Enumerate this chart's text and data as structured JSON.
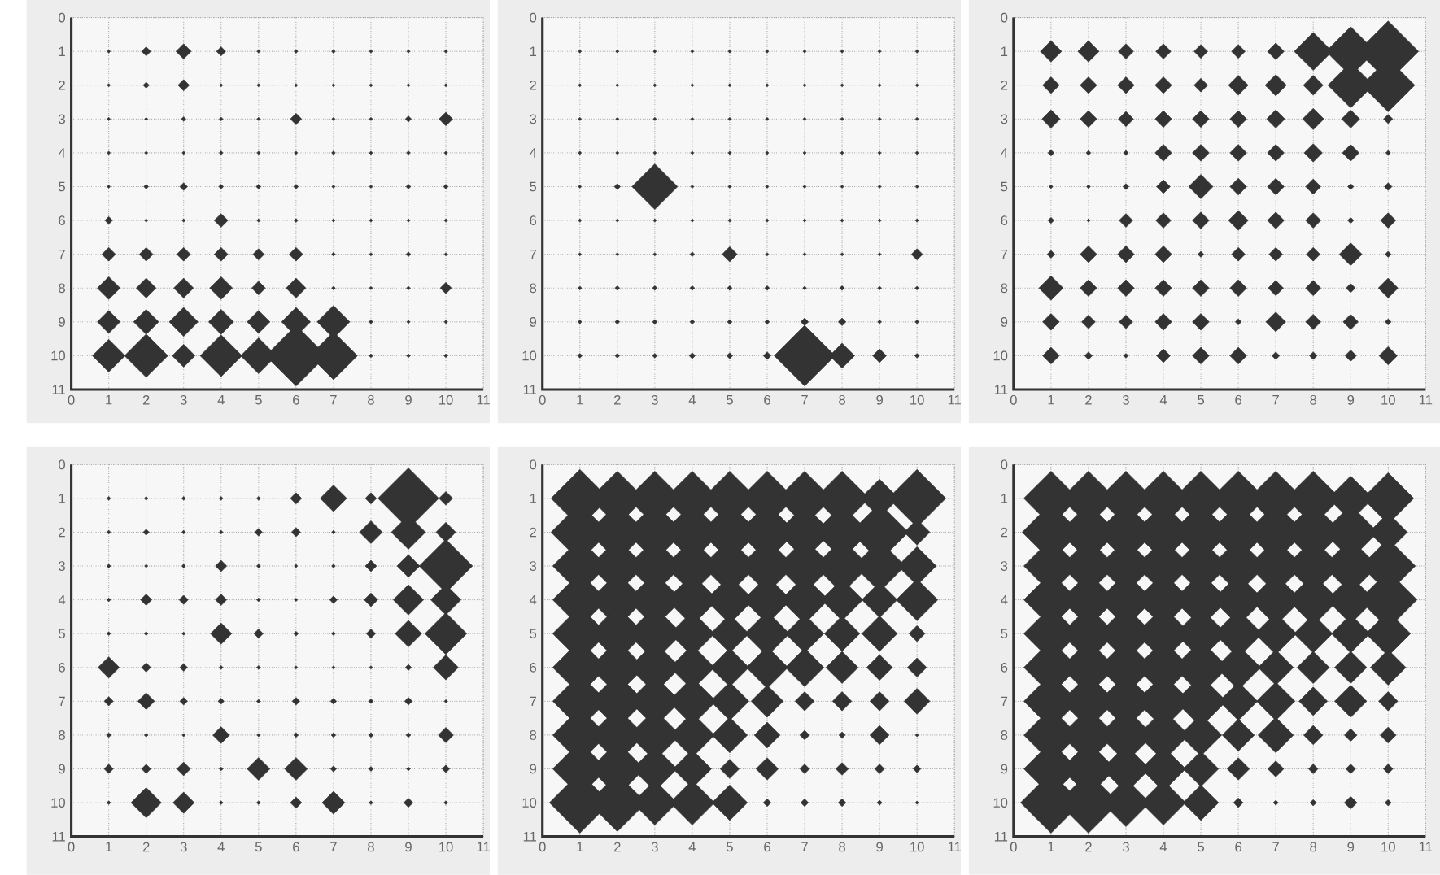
{
  "chart_data": [
    {
      "type": "bubble",
      "color": "#333333",
      "marker": "diamond",
      "grid": true,
      "xlim": [
        0,
        11
      ],
      "ylim": [
        11,
        0
      ],
      "xticks": [
        0,
        1,
        2,
        3,
        4,
        5,
        6,
        7,
        8,
        9,
        10,
        11
      ],
      "yticks": [
        0,
        1,
        2,
        3,
        4,
        5,
        6,
        7,
        8,
        9,
        10,
        11
      ],
      "x": [
        1,
        2,
        3,
        4,
        5,
        6,
        7,
        8,
        9,
        10,
        1,
        2,
        3,
        4,
        5,
        6,
        7,
        8,
        9,
        10,
        1,
        2,
        3,
        4,
        5,
        6,
        7,
        8,
        9,
        10,
        1,
        2,
        3,
        4,
        5,
        6,
        7,
        8,
        9,
        10,
        1,
        2,
        3,
        4,
        5,
        6,
        7,
        8,
        9,
        10,
        1,
        2,
        3,
        4,
        5,
        6,
        7,
        8,
        9,
        10,
        1,
        2,
        3,
        4,
        5,
        6,
        7,
        8,
        9,
        10,
        1,
        2,
        3,
        4,
        5,
        6,
        7,
        8,
        9,
        10,
        1,
        2,
        3,
        4,
        5,
        6,
        7,
        8,
        9,
        10,
        1,
        2,
        3,
        4,
        5,
        6,
        7,
        8,
        9,
        10
      ],
      "values": [
        1,
        1,
        1,
        1,
        1,
        1,
        1,
        1,
        1,
        1,
        2,
        2,
        2,
        2,
        2,
        2,
        2,
        2,
        2,
        2,
        3,
        3,
        3,
        3,
        3,
        3,
        3,
        3,
        3,
        3,
        4,
        4,
        4,
        4,
        4,
        4,
        4,
        4,
        4,
        4,
        5,
        5,
        5,
        5,
        5,
        5,
        5,
        5,
        5,
        5,
        6,
        6,
        6,
        6,
        6,
        6,
        6,
        6,
        6,
        6,
        7,
        7,
        7,
        7,
        7,
        7,
        7,
        7,
        7,
        7,
        8,
        8,
        8,
        8,
        8,
        8,
        8,
        8,
        8,
        8,
        9,
        9,
        9,
        9,
        9,
        9,
        9,
        9,
        9,
        9,
        10,
        10,
        10,
        10,
        10,
        10,
        10,
        10,
        10,
        10
      ],
      "sizes": [
        0.003,
        0.023,
        0.063,
        0.023,
        0.003,
        0.004,
        0.004,
        0.003,
        0.003,
        0.003,
        0.003,
        0.01,
        0.035,
        0.003,
        0.003,
        0.003,
        0.003,
        0.003,
        0.003,
        0.003,
        0.003,
        0.003,
        0.006,
        0.004,
        0.003,
        0.035,
        0.003,
        0.003,
        0.01,
        0.051,
        0.003,
        0.003,
        0.003,
        0.004,
        0.003,
        0.003,
        0.004,
        0.003,
        0.004,
        0.003,
        0.003,
        0.006,
        0.016,
        0.006,
        0.006,
        0.006,
        0.003,
        0.003,
        0.006,
        0.006,
        0.016,
        0.003,
        0.003,
        0.051,
        0.003,
        0.004,
        0.003,
        0.003,
        0.003,
        0.003,
        0.051,
        0.051,
        0.051,
        0.051,
        0.035,
        0.051,
        0.004,
        0.003,
        0.006,
        0.003,
        0.141,
        0.106,
        0.106,
        0.141,
        0.051,
        0.106,
        0.004,
        0.003,
        0.004,
        0.035,
        0.141,
        0.17,
        0.226,
        0.17,
        0.141,
        0.226,
        0.289,
        0.004,
        0.003,
        0.003,
        0.289,
        0.508,
        0.141,
        0.473,
        0.345,
        1,
        0.62,
        0.004,
        0.004,
        0.004
      ]
    },
    {
      "type": "bubble",
      "color": "#333333",
      "marker": "diamond",
      "grid": true,
      "xlim": [
        0,
        11
      ],
      "ylim": [
        11,
        0
      ],
      "xticks": [
        0,
        1,
        2,
        3,
        4,
        5,
        6,
        7,
        8,
        9,
        10,
        11
      ],
      "yticks": [
        0,
        1,
        2,
        3,
        4,
        5,
        6,
        7,
        8,
        9,
        10,
        11
      ],
      "x": [
        1,
        2,
        3,
        4,
        5,
        6,
        7,
        8,
        9,
        10,
        1,
        2,
        3,
        4,
        5,
        6,
        7,
        8,
        9,
        10,
        1,
        2,
        3,
        4,
        5,
        6,
        7,
        8,
        9,
        10,
        1,
        2,
        3,
        4,
        5,
        6,
        7,
        8,
        9,
        10,
        1,
        2,
        3,
        4,
        5,
        6,
        7,
        8,
        9,
        10,
        1,
        2,
        3,
        4,
        5,
        6,
        7,
        8,
        9,
        10,
        1,
        2,
        3,
        4,
        5,
        6,
        7,
        8,
        9,
        10,
        1,
        2,
        3,
        4,
        5,
        6,
        7,
        8,
        9,
        10,
        1,
        2,
        3,
        4,
        5,
        6,
        7,
        8,
        9,
        10,
        1,
        2,
        3,
        4,
        5,
        6,
        7,
        8,
        9,
        10
      ],
      "values": [
        1,
        1,
        1,
        1,
        1,
        1,
        1,
        1,
        1,
        1,
        2,
        2,
        2,
        2,
        2,
        2,
        2,
        2,
        2,
        2,
        3,
        3,
        3,
        3,
        3,
        3,
        3,
        3,
        3,
        3,
        4,
        4,
        4,
        4,
        4,
        4,
        4,
        4,
        4,
        4,
        5,
        5,
        5,
        5,
        5,
        5,
        5,
        5,
        5,
        5,
        6,
        6,
        6,
        6,
        6,
        6,
        6,
        6,
        6,
        6,
        7,
        7,
        7,
        7,
        7,
        7,
        7,
        7,
        7,
        7,
        8,
        8,
        8,
        8,
        8,
        8,
        8,
        8,
        8,
        8,
        9,
        9,
        9,
        9,
        9,
        9,
        9,
        9,
        9,
        9,
        10,
        10,
        10,
        10,
        10,
        10,
        10,
        10,
        10,
        10
      ],
      "sizes": [
        0.003,
        0.003,
        0.003,
        0.003,
        0.003,
        0.003,
        0.003,
        0.003,
        0.003,
        0.003,
        0.003,
        0.003,
        0.003,
        0.003,
        0.003,
        0.003,
        0.003,
        0.003,
        0.003,
        0.003,
        0.003,
        0.003,
        0.003,
        0.003,
        0.003,
        0.003,
        0.003,
        0.003,
        0.003,
        0.003,
        0.003,
        0.003,
        0.003,
        0.003,
        0.003,
        0.003,
        0.003,
        0.003,
        0.003,
        0.003,
        0.003,
        0.01,
        0.563,
        0.003,
        0.003,
        0.003,
        0.003,
        0.003,
        0.003,
        0.003,
        0.003,
        0.003,
        0.003,
        0.003,
        0.003,
        0.003,
        0.003,
        0.003,
        0.003,
        0.003,
        0.003,
        0.003,
        0.003,
        0.006,
        0.063,
        0.003,
        0.003,
        0.003,
        0.003,
        0.035,
        0.004,
        0.006,
        0.006,
        0.006,
        0.006,
        0.006,
        0.004,
        0.006,
        0.004,
        0.004,
        0.004,
        0.006,
        0.006,
        0.006,
        0.006,
        0.006,
        0.016,
        0.016,
        0.004,
        0.004,
        0.006,
        0.006,
        0.006,
        0.01,
        0.01,
        0.016,
        1,
        0.17,
        0.051,
        0.006
      ]
    },
    {
      "type": "bubble",
      "color": "#333333",
      "marker": "diamond",
      "grid": true,
      "xlim": [
        0,
        11
      ],
      "ylim": [
        11,
        0
      ],
      "xticks": [
        0,
        1,
        2,
        3,
        4,
        5,
        6,
        7,
        8,
        9,
        10,
        11
      ],
      "yticks": [
        0,
        1,
        2,
        3,
        4,
        5,
        6,
        7,
        8,
        9,
        10,
        11
      ],
      "x": [
        1,
        2,
        3,
        4,
        5,
        6,
        7,
        8,
        9,
        10,
        1,
        2,
        3,
        4,
        5,
        6,
        7,
        8,
        9,
        10,
        1,
        2,
        3,
        4,
        5,
        6,
        7,
        8,
        9,
        10,
        1,
        2,
        3,
        4,
        5,
        6,
        7,
        8,
        9,
        10,
        1,
        2,
        3,
        4,
        5,
        6,
        7,
        8,
        9,
        10,
        1,
        2,
        3,
        4,
        5,
        6,
        7,
        8,
        9,
        10,
        1,
        2,
        3,
        4,
        5,
        6,
        7,
        8,
        9,
        10,
        1,
        2,
        3,
        4,
        5,
        6,
        7,
        8,
        9,
        10,
        1,
        2,
        3,
        4,
        5,
        6,
        7,
        8,
        9,
        10,
        1,
        2,
        3,
        4,
        5,
        6,
        7,
        8,
        9,
        10
      ],
      "values": [
        1,
        1,
        1,
        1,
        1,
        1,
        1,
        1,
        1,
        1,
        2,
        2,
        2,
        2,
        2,
        2,
        2,
        2,
        2,
        2,
        3,
        3,
        3,
        3,
        3,
        3,
        3,
        3,
        3,
        3,
        4,
        4,
        4,
        4,
        4,
        4,
        4,
        4,
        4,
        4,
        5,
        5,
        5,
        5,
        5,
        5,
        5,
        5,
        5,
        5,
        6,
        6,
        6,
        6,
        6,
        6,
        6,
        6,
        6,
        6,
        7,
        7,
        7,
        7,
        7,
        7,
        7,
        7,
        7,
        7,
        8,
        8,
        8,
        8,
        8,
        8,
        8,
        8,
        8,
        8,
        9,
        9,
        9,
        9,
        9,
        9,
        9,
        9,
        9,
        9,
        10,
        10,
        10,
        10,
        10,
        10,
        10,
        10,
        10,
        10
      ],
      "sizes": [
        0.123,
        0.123,
        0.063,
        0.063,
        0.051,
        0.051,
        0.076,
        0.391,
        0.66,
        1,
        0.076,
        0.076,
        0.076,
        0.076,
        0.051,
        0.106,
        0.123,
        0.106,
        0.563,
        0.766,
        0.09,
        0.076,
        0.063,
        0.076,
        0.076,
        0.076,
        0.09,
        0.123,
        0.09,
        0.023,
        0.01,
        0.006,
        0.006,
        0.076,
        0.076,
        0.076,
        0.076,
        0.09,
        0.076,
        0.006,
        0.004,
        0.004,
        0.01,
        0.051,
        0.16,
        0.076,
        0.076,
        0.063,
        0.01,
        0.016,
        0.01,
        0.003,
        0.051,
        0.063,
        0.076,
        0.106,
        0.076,
        0.063,
        0.01,
        0.063,
        0.016,
        0.076,
        0.076,
        0.076,
        0.01,
        0.051,
        0.051,
        0.051,
        0.141,
        0.01,
        0.16,
        0.076,
        0.076,
        0.076,
        0.076,
        0.076,
        0.063,
        0.063,
        0.023,
        0.106,
        0.076,
        0.051,
        0.051,
        0.076,
        0.076,
        0.01,
        0.106,
        0.063,
        0.063,
        0.01,
        0.076,
        0.016,
        0.006,
        0.051,
        0.076,
        0.076,
        0.016,
        0.016,
        0.035,
        0.09
      ]
    },
    {
      "type": "bubble",
      "color": "#333333",
      "marker": "diamond",
      "grid": true,
      "xlim": [
        0,
        11
      ],
      "ylim": [
        11,
        0
      ],
      "xticks": [
        0,
        1,
        2,
        3,
        4,
        5,
        6,
        7,
        8,
        9,
        10,
        11
      ],
      "yticks": [
        0,
        1,
        2,
        3,
        4,
        5,
        6,
        7,
        8,
        9,
        10,
        11
      ],
      "x": [
        1,
        2,
        3,
        4,
        5,
        6,
        7,
        8,
        9,
        10,
        1,
        2,
        3,
        4,
        5,
        6,
        7,
        8,
        9,
        10,
        1,
        2,
        3,
        4,
        5,
        6,
        7,
        8,
        9,
        10,
        1,
        2,
        3,
        4,
        5,
        6,
        7,
        8,
        9,
        10,
        1,
        2,
        3,
        4,
        5,
        6,
        7,
        8,
        9,
        10,
        1,
        2,
        3,
        4,
        5,
        6,
        7,
        8,
        9,
        10,
        1,
        2,
        3,
        4,
        5,
        6,
        7,
        8,
        9,
        10,
        1,
        2,
        3,
        4,
        5,
        6,
        7,
        8,
        9,
        10,
        1,
        2,
        3,
        4,
        5,
        6,
        7,
        8,
        9,
        10,
        1,
        2,
        3,
        4,
        5,
        6,
        7,
        8,
        9,
        10
      ],
      "values": [
        1,
        1,
        1,
        1,
        1,
        1,
        1,
        1,
        1,
        1,
        2,
        2,
        2,
        2,
        2,
        2,
        2,
        2,
        2,
        2,
        3,
        3,
        3,
        3,
        3,
        3,
        3,
        3,
        3,
        3,
        4,
        4,
        4,
        4,
        4,
        4,
        4,
        4,
        4,
        4,
        5,
        5,
        5,
        5,
        5,
        5,
        5,
        5,
        5,
        5,
        6,
        6,
        6,
        6,
        6,
        6,
        6,
        6,
        6,
        6,
        7,
        7,
        7,
        7,
        7,
        7,
        7,
        7,
        7,
        7,
        8,
        8,
        8,
        8,
        8,
        8,
        8,
        8,
        8,
        8,
        9,
        9,
        9,
        9,
        9,
        9,
        9,
        9,
        9,
        9,
        10,
        10,
        10,
        10,
        10,
        10,
        10,
        10,
        10,
        10
      ],
      "sizes": [
        0.004,
        0.004,
        0.004,
        0.004,
        0.004,
        0.035,
        0.191,
        0.035,
        1,
        0.051,
        0.004,
        0.01,
        0.004,
        0.004,
        0.016,
        0.023,
        0.004,
        0.141,
        0.316,
        0.106,
        0.004,
        0.003,
        0.004,
        0.035,
        0.004,
        0.003,
        0.004,
        0.035,
        0.141,
        0.766,
        0.004,
        0.035,
        0.023,
        0.035,
        0.004,
        0.003,
        0.016,
        0.051,
        0.25,
        0.25,
        0.004,
        0.004,
        0.003,
        0.123,
        0.023,
        0.006,
        0.004,
        0.023,
        0.191,
        0.473,
        0.123,
        0.023,
        0.016,
        0.004,
        0.004,
        0.003,
        0.003,
        0.003,
        0.01,
        0.17,
        0.023,
        0.076,
        0.016,
        0.01,
        0.004,
        0.016,
        0.01,
        0.006,
        0.016,
        0.003,
        0.006,
        0.004,
        0.003,
        0.076,
        0.003,
        0.006,
        0.006,
        0.006,
        0.006,
        0.063,
        0.023,
        0.023,
        0.051,
        0.004,
        0.141,
        0.141,
        0.01,
        0.006,
        0.004,
        0.016,
        0.004,
        0.25,
        0.123,
        0.004,
        0.004,
        0.035,
        0.141,
        0.004,
        0.023,
        0.004
      ]
    },
    {
      "type": "bubble",
      "color": "#333333",
      "marker": "diamond",
      "grid": true,
      "xlim": [
        0,
        11
      ],
      "ylim": [
        11,
        0
      ],
      "xticks": [
        0,
        1,
        2,
        3,
        4,
        5,
        6,
        7,
        8,
        9,
        10,
        11
      ],
      "yticks": [
        0,
        1,
        2,
        3,
        4,
        5,
        6,
        7,
        8,
        9,
        10,
        11
      ],
      "x": [
        1,
        2,
        3,
        4,
        5,
        6,
        7,
        8,
        9,
        10,
        1,
        2,
        3,
        4,
        5,
        6,
        7,
        8,
        9,
        10,
        1,
        2,
        3,
        4,
        5,
        6,
        7,
        8,
        9,
        10,
        1,
        2,
        3,
        4,
        5,
        6,
        7,
        8,
        9,
        10,
        1,
        2,
        3,
        4,
        5,
        6,
        7,
        8,
        9,
        10,
        1,
        2,
        3,
        4,
        5,
        6,
        7,
        8,
        9,
        10,
        1,
        2,
        3,
        4,
        5,
        6,
        7,
        8,
        9,
        10,
        1,
        2,
        3,
        4,
        5,
        6,
        7,
        8,
        9,
        10,
        1,
        2,
        3,
        4,
        5,
        6,
        7,
        8,
        9,
        10,
        1,
        2,
        3,
        4,
        5,
        6,
        7,
        8,
        9,
        10
      ],
      "values": [
        1,
        1,
        1,
        1,
        1,
        1,
        1,
        1,
        1,
        1,
        2,
        2,
        2,
        2,
        2,
        2,
        2,
        2,
        2,
        2,
        3,
        3,
        3,
        3,
        3,
        3,
        3,
        3,
        3,
        3,
        4,
        4,
        4,
        4,
        4,
        4,
        4,
        4,
        4,
        4,
        5,
        5,
        5,
        5,
        5,
        5,
        5,
        5,
        5,
        5,
        6,
        6,
        6,
        6,
        6,
        6,
        6,
        6,
        6,
        6,
        7,
        7,
        7,
        7,
        7,
        7,
        7,
        7,
        7,
        7,
        8,
        8,
        8,
        8,
        8,
        8,
        8,
        8,
        8,
        8,
        9,
        9,
        9,
        9,
        9,
        9,
        9,
        9,
        9,
        9,
        10,
        10,
        10,
        10,
        10,
        10,
        10,
        10,
        10,
        10
      ],
      "sizes": [
        0.9,
        0.8,
        0.8,
        0.8,
        0.8,
        0.8,
        0.8,
        0.8,
        0.4,
        0.9,
        0.9,
        0.9,
        0.9,
        0.9,
        0.9,
        0.9,
        0.8,
        0.8,
        0.9,
        0.18,
        0.8,
        0.8,
        0.8,
        0.8,
        0.8,
        0.8,
        0.8,
        0.8,
        0.71,
        0.4,
        0.8,
        0.8,
        0.8,
        0.71,
        0.62,
        0.62,
        0.62,
        0.47,
        0.34,
        0.47,
        0.8,
        0.8,
        0.8,
        0.54,
        0.4,
        0.54,
        0.4,
        0.34,
        0.34,
        0.07,
        0.8,
        0.8,
        0.71,
        0.54,
        0.4,
        0.47,
        0.4,
        0.28,
        0.18,
        0.1,
        0.8,
        0.8,
        0.71,
        0.62,
        0.4,
        0.28,
        0.1,
        0.1,
        0.1,
        0.18,
        0.8,
        0.8,
        0.71,
        0.54,
        0.34,
        0.18,
        0.025,
        0.011,
        0.1,
        0.003,
        0.8,
        0.8,
        0.54,
        0.4,
        0.1,
        0.136,
        0.025,
        0.044,
        0.025,
        0.016,
        1,
        0.9,
        0.54,
        0.54,
        0.34,
        0.016,
        0.016,
        0.016,
        0.007,
        0.003
      ]
    },
    {
      "type": "bubble",
      "color": "#333333",
      "marker": "diamond",
      "grid": true,
      "xlim": [
        0,
        11
      ],
      "ylim": [
        11,
        0
      ],
      "xticks": [
        0,
        1,
        2,
        3,
        4,
        5,
        6,
        7,
        8,
        9,
        10,
        11
      ],
      "yticks": [
        0,
        1,
        2,
        3,
        4,
        5,
        6,
        7,
        8,
        9,
        10,
        11
      ],
      "x": [
        1,
        2,
        3,
        4,
        5,
        6,
        7,
        8,
        9,
        10,
        1,
        2,
        3,
        4,
        5,
        6,
        7,
        8,
        9,
        10,
        1,
        2,
        3,
        4,
        5,
        6,
        7,
        8,
        9,
        10,
        1,
        2,
        3,
        4,
        5,
        6,
        7,
        8,
        9,
        10,
        1,
        2,
        3,
        4,
        5,
        6,
        7,
        8,
        9,
        10,
        1,
        2,
        3,
        4,
        5,
        6,
        7,
        8,
        9,
        10,
        1,
        2,
        3,
        4,
        5,
        6,
        7,
        8,
        9,
        10,
        1,
        2,
        3,
        4,
        5,
        6,
        7,
        8,
        9,
        10,
        1,
        2,
        3,
        4,
        5,
        6,
        7,
        8,
        9,
        10,
        1,
        2,
        3,
        4,
        5,
        6,
        7,
        8,
        9,
        10
      ],
      "values": [
        1,
        1,
        1,
        1,
        1,
        1,
        1,
        1,
        1,
        1,
        2,
        2,
        2,
        2,
        2,
        2,
        2,
        2,
        2,
        2,
        3,
        3,
        3,
        3,
        3,
        3,
        3,
        3,
        3,
        3,
        4,
        4,
        4,
        4,
        4,
        4,
        4,
        4,
        4,
        4,
        5,
        5,
        5,
        5,
        5,
        5,
        5,
        5,
        5,
        5,
        6,
        6,
        6,
        6,
        6,
        6,
        6,
        6,
        6,
        6,
        7,
        7,
        7,
        7,
        7,
        7,
        7,
        7,
        7,
        7,
        8,
        8,
        8,
        8,
        8,
        8,
        8,
        8,
        8,
        8,
        9,
        9,
        9,
        9,
        9,
        9,
        9,
        9,
        9,
        9,
        10,
        10,
        10,
        10,
        10,
        10,
        10,
        10,
        10,
        10
      ],
      "sizes": [
        0.8,
        0.8,
        0.8,
        0.8,
        0.8,
        0.8,
        0.8,
        0.8,
        0.54,
        0.71,
        0.9,
        0.9,
        0.9,
        0.9,
        0.9,
        0.9,
        0.9,
        0.9,
        0.8,
        0.4,
        0.8,
        0.8,
        0.8,
        0.8,
        0.8,
        0.8,
        0.8,
        0.8,
        0.8,
        0.8,
        0.8,
        0.8,
        0.8,
        0.8,
        0.8,
        0.71,
        0.71,
        0.71,
        0.62,
        0.9,
        0.8,
        0.8,
        0.8,
        0.8,
        0.71,
        0.62,
        0.47,
        0.4,
        0.4,
        0.54,
        0.8,
        0.8,
        0.8,
        0.8,
        0.8,
        0.54,
        0.34,
        0.28,
        0.28,
        0.34,
        0.8,
        0.8,
        0.8,
        0.8,
        0.71,
        0.4,
        0.4,
        0.22,
        0.28,
        0.1,
        0.8,
        0.8,
        0.8,
        0.71,
        0.47,
        0.28,
        0.34,
        0.1,
        0.044,
        0.07,
        0.8,
        0.8,
        0.62,
        0.54,
        0.34,
        0.136,
        0.07,
        0.025,
        0.025,
        0.025,
        1,
        1,
        0.62,
        0.54,
        0.34,
        0.025,
        0.007,
        0.011,
        0.044,
        0.011
      ]
    }
  ]
}
